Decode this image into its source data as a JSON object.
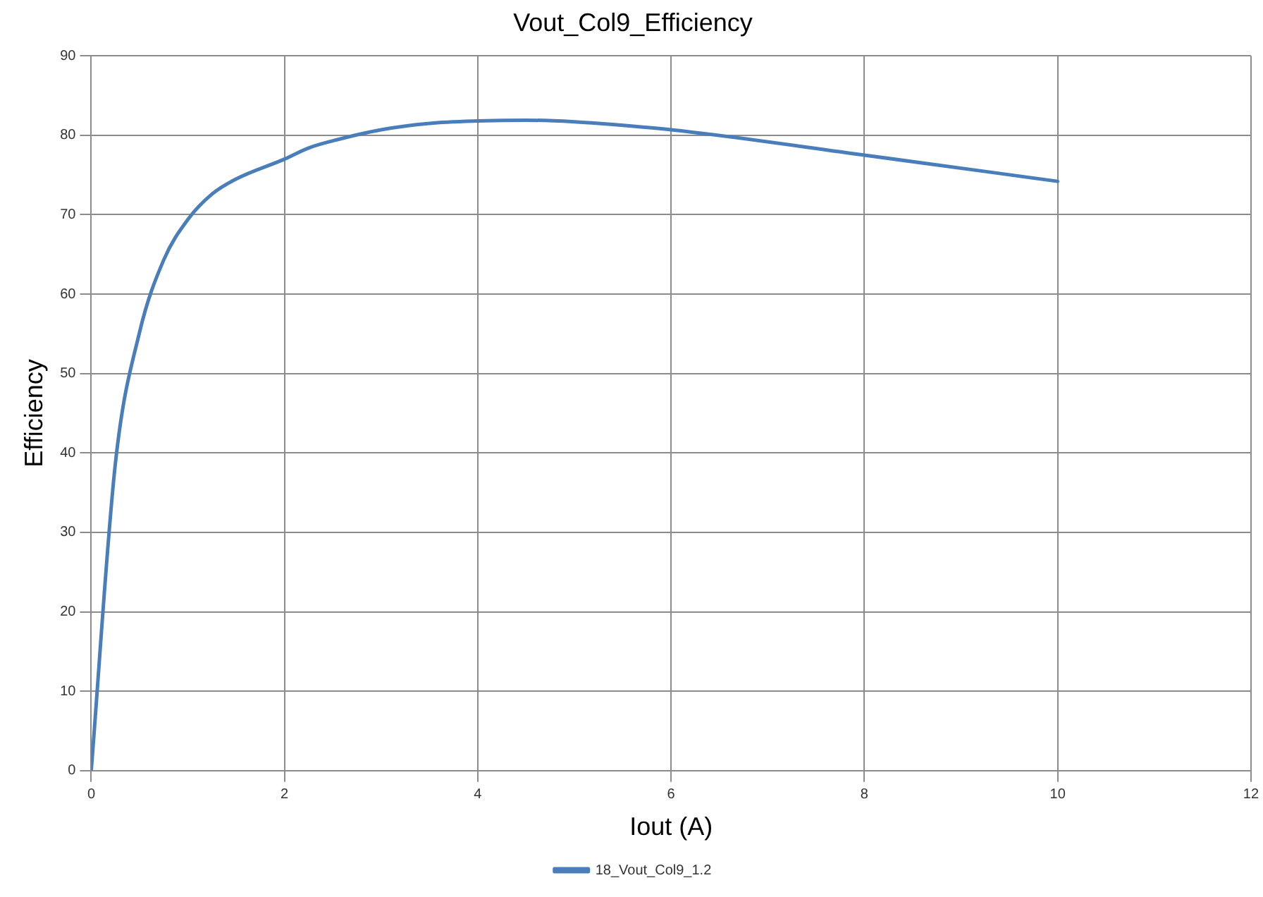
{
  "chart_data": {
    "type": "line",
    "title": "Vout_Col9_Efficiency",
    "xlabel": "Iout (A)",
    "ylabel": "Efficiency",
    "xlim": [
      0,
      12
    ],
    "xticks": [
      0,
      2,
      4,
      6,
      8,
      10,
      12
    ],
    "ylim": [
      0,
      90
    ],
    "yticks": [
      0,
      10,
      20,
      30,
      40,
      50,
      60,
      70,
      80,
      90
    ],
    "grid": true,
    "legend": "bottom",
    "marker": "none",
    "line_style": "solid",
    "series": [
      {
        "name": "18_Vout_Col9_1.2",
        "color": "#4a7ebb",
        "x": [
          0,
          0.25,
          0.5,
          0.75,
          1,
          1.25,
          1.5,
          2,
          2.25,
          2.5,
          3,
          3.5,
          4,
          4.5,
          5,
          5.25,
          6,
          8,
          10
        ],
        "values": [
          0,
          38.7,
          55.2,
          64.3,
          69.4,
          72.6,
          74.5,
          77,
          78.4,
          79.3,
          80.7,
          81.5,
          81.8,
          81.9,
          81.7,
          81.5,
          80.7,
          77.5,
          74.2
        ]
      }
    ]
  }
}
